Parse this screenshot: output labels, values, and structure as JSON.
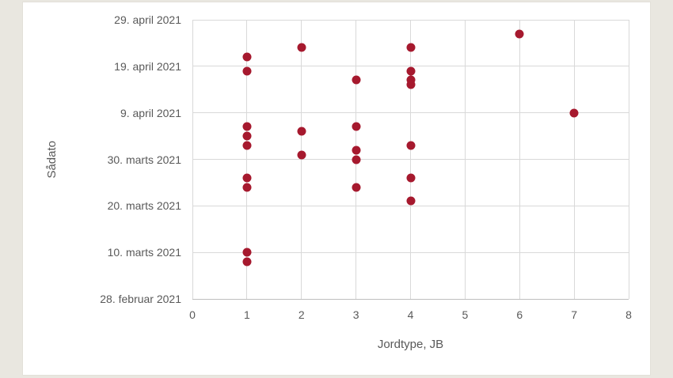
{
  "chart_data": {
    "type": "scatter",
    "title": "",
    "xlabel": "Jordtype, JB",
    "ylabel": "Sådato",
    "x_ticks": [
      "0",
      "1",
      "2",
      "3",
      "4",
      "5",
      "6",
      "7",
      "8"
    ],
    "y_ticks": [
      "29. april 2021",
      "19. april 2021",
      "9. april 2021",
      "30. marts 2021",
      "20. marts 2021",
      "10. marts 2021",
      "28. februar 2021"
    ],
    "xlim": [
      0,
      8
    ],
    "ylim_dates": [
      "2021-02-28",
      "2021-04-29"
    ],
    "grid": true,
    "legend_position": "none",
    "marker_color": "#A6192E",
    "points": [
      {
        "jb": 1,
        "date": "2021-04-21"
      },
      {
        "jb": 1,
        "date": "2021-04-18"
      },
      {
        "jb": 1,
        "date": "2021-04-06"
      },
      {
        "jb": 1,
        "date": "2021-04-04"
      },
      {
        "jb": 1,
        "date": "2021-04-02"
      },
      {
        "jb": 1,
        "date": "2021-03-26"
      },
      {
        "jb": 1,
        "date": "2021-03-24"
      },
      {
        "jb": 1,
        "date": "2021-03-10"
      },
      {
        "jb": 1,
        "date": "2021-03-08"
      },
      {
        "jb": 2,
        "date": "2021-04-23"
      },
      {
        "jb": 2,
        "date": "2021-04-05"
      },
      {
        "jb": 2,
        "date": "2021-03-31"
      },
      {
        "jb": 3,
        "date": "2021-04-16"
      },
      {
        "jb": 3,
        "date": "2021-04-06"
      },
      {
        "jb": 3,
        "date": "2021-04-01"
      },
      {
        "jb": 3,
        "date": "2021-03-30"
      },
      {
        "jb": 3,
        "date": "2021-03-24"
      },
      {
        "jb": 4,
        "date": "2021-04-23"
      },
      {
        "jb": 4,
        "date": "2021-04-18"
      },
      {
        "jb": 4,
        "date": "2021-04-16"
      },
      {
        "jb": 4,
        "date": "2021-04-15"
      },
      {
        "jb": 4,
        "date": "2021-04-02"
      },
      {
        "jb": 4,
        "date": "2021-03-26"
      },
      {
        "jb": 4,
        "date": "2021-03-21"
      },
      {
        "jb": 6,
        "date": "2021-04-26"
      },
      {
        "jb": 7,
        "date": "2021-04-09"
      }
    ]
  },
  "colors": {
    "page_background": "#E9E7E0",
    "card_background": "#FFFFFF",
    "gridline": "#D9D9D9",
    "axis_line": "#BFBFBF",
    "tick_text": "#595959",
    "marker": "#A6192E"
  }
}
